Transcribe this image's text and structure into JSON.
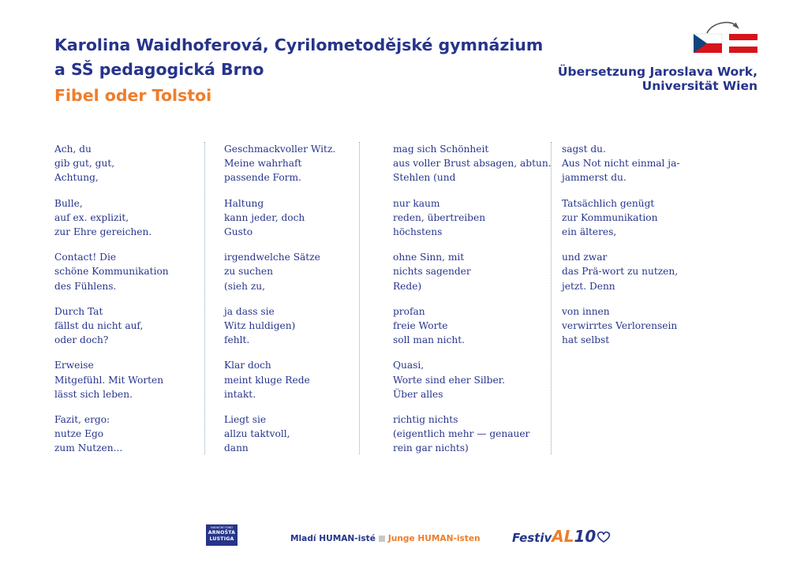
{
  "header": {
    "author_lines": [
      "Karolina Waidhoferová, Cyrilometodějské gymnázium",
      "a SŠ pedagogická Brno"
    ],
    "poem_title": "Fibel oder Tolstoi",
    "translator_lines": [
      "Übersetzung Jaroslava Work,",
      "Universität Wien"
    ],
    "flags_icon": "czech-to-austria-flags-icon"
  },
  "colors": {
    "primary": "#26348b",
    "accent": "#ef7d2a",
    "divider": "#8fa4c8"
  },
  "poem": {
    "columns": [
      [
        [
          "Ach, du",
          "gib gut, gut,",
          "Achtung,"
        ],
        [
          "Bulle,",
          "auf ex. explizit,",
          "zur Ehre gereichen."
        ],
        [
          "Contact! Die",
          "schöne Kommunikation",
          "des Fühlens."
        ],
        [
          "Durch Tat",
          "fällst du nicht auf,",
          "oder doch?"
        ],
        [
          "Erweise",
          "Mitgefühl. Mit Worten",
          "lässt sich leben."
        ],
        [
          "Fazit, ergo:",
          "nutze Ego",
          "zum Nutzen..."
        ]
      ],
      [
        [
          "Geschmackvoller Witz.",
          "Meine wahrhaft",
          "passende Form."
        ],
        [
          "Haltung",
          "kann jeder, doch",
          "Gusto"
        ],
        [
          "irgendwelche Sätze",
          "zu suchen",
          "(sieh zu,"
        ],
        [
          "ja dass sie",
          "Witz huldigen)",
          "fehlt."
        ],
        [
          "Klar doch",
          "meint kluge Rede",
          "intakt."
        ],
        [
          "Liegt sie",
          "allzu taktvoll,",
          "dann"
        ]
      ],
      [
        [
          "mag sich Schönheit",
          "aus voller Brust absagen, abtun.",
          "Stehlen (und"
        ],
        [
          "nur kaum",
          "reden, übertreiben",
          "höchstens"
        ],
        [
          "ohne Sinn, mit",
          "nichts sagender",
          "Rede)"
        ],
        [
          "profan",
          "freie Worte",
          "soll man nicht."
        ],
        [
          "Quasi,",
          "Worte sind eher Silber.",
          "Über alles"
        ],
        [
          "richtig nichts",
          "(eigentlich mehr — genauer",
          "rein gar nichts)"
        ]
      ],
      [
        [
          "sagst du.",
          "Aus Not nicht einmal ja-",
          "jammerst du."
        ],
        [
          "Tatsächlich genügt",
          "zur Kommunikation",
          "ein älteres,"
        ],
        [
          "und zwar",
          "das Prä-wort zu nutzen,",
          "jetzt. Denn"
        ],
        [
          "von innen",
          "verwirrtes Verlorensein",
          "hat selbst"
        ]
      ]
    ]
  },
  "footer": {
    "fund_logo": {
      "small": "NADAČNÍ FOND",
      "line1": "ARNOŠTA",
      "line2": "LUSTIGA",
      "icon": "arnost-lustig-fund-logo"
    },
    "project_cz": "Mladí HUMAN-isté",
    "project_de": "Junge HUMAN-isten",
    "festival": {
      "part1": "Festiv",
      "part2": "AL",
      "part3": "10",
      "icon": "festival-logo"
    }
  }
}
